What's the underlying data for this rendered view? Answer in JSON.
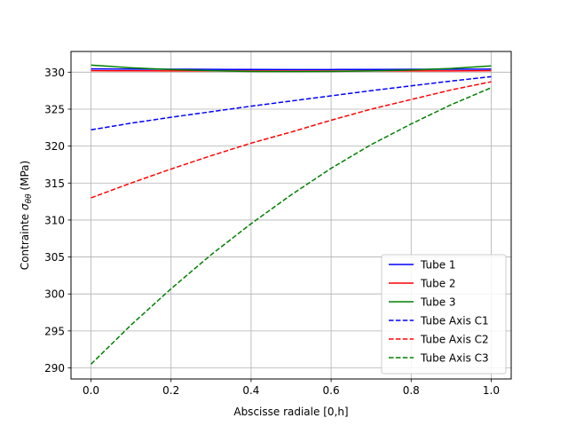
{
  "chart_data": {
    "type": "line",
    "xlabel": "Abscisse radiale [0,h]",
    "ylabel_prefix": "Contrainte ",
    "ylabel_symbol": "σ",
    "ylabel_subscript": "θθ",
    "ylabel_suffix": " (MPa)",
    "xlim": [
      -0.05,
      1.05
    ],
    "ylim": [
      288.5,
      332.8
    ],
    "xticks": [
      0.0,
      0.2,
      0.4,
      0.6,
      0.8,
      1.0
    ],
    "xtick_labels": [
      "0.0",
      "0.2",
      "0.4",
      "0.6",
      "0.8",
      "1.0"
    ],
    "yticks": [
      290,
      295,
      300,
      305,
      310,
      315,
      320,
      325,
      330
    ],
    "ytick_labels": [
      "290",
      "295",
      "300",
      "305",
      "310",
      "315",
      "320",
      "325",
      "330"
    ],
    "grid": true,
    "legend_position": "lower-right",
    "x": [
      0.0,
      0.1,
      0.2,
      0.3,
      0.4,
      0.5,
      0.6,
      0.7,
      0.8,
      0.9,
      1.0
    ],
    "series": [
      {
        "name": "Tube 1",
        "color": "#0000ff",
        "style": "solid",
        "values": [
          330.45,
          330.42,
          330.4,
          330.38,
          330.37,
          330.36,
          330.36,
          330.37,
          330.38,
          330.4,
          330.42
        ]
      },
      {
        "name": "Tube 2",
        "color": "#ff0000",
        "style": "solid",
        "values": [
          330.2,
          330.19,
          330.18,
          330.17,
          330.17,
          330.16,
          330.16,
          330.17,
          330.17,
          330.18,
          330.2
        ]
      },
      {
        "name": "Tube 3",
        "color": "#008000",
        "style": "solid",
        "values": [
          330.95,
          330.6,
          330.35,
          330.2,
          330.1,
          330.08,
          330.1,
          330.18,
          330.3,
          330.5,
          330.85
        ]
      },
      {
        "name": "Tube Axis C1",
        "color": "#0000ff",
        "style": "dashed",
        "values": [
          322.2,
          323.1,
          323.9,
          324.65,
          325.4,
          326.1,
          326.8,
          327.5,
          328.15,
          328.8,
          329.4
        ]
      },
      {
        "name": "Tube Axis C2",
        "color": "#ff0000",
        "style": "dashed",
        "values": [
          313.0,
          315.0,
          316.9,
          318.7,
          320.4,
          321.9,
          323.5,
          325.0,
          326.3,
          327.6,
          328.7
        ]
      },
      {
        "name": "Tube Axis C3",
        "color": "#008000",
        "style": "dashed",
        "values": [
          290.5,
          295.8,
          300.7,
          305.3,
          309.5,
          313.4,
          317.0,
          320.2,
          323.0,
          325.6,
          327.9
        ]
      }
    ]
  }
}
